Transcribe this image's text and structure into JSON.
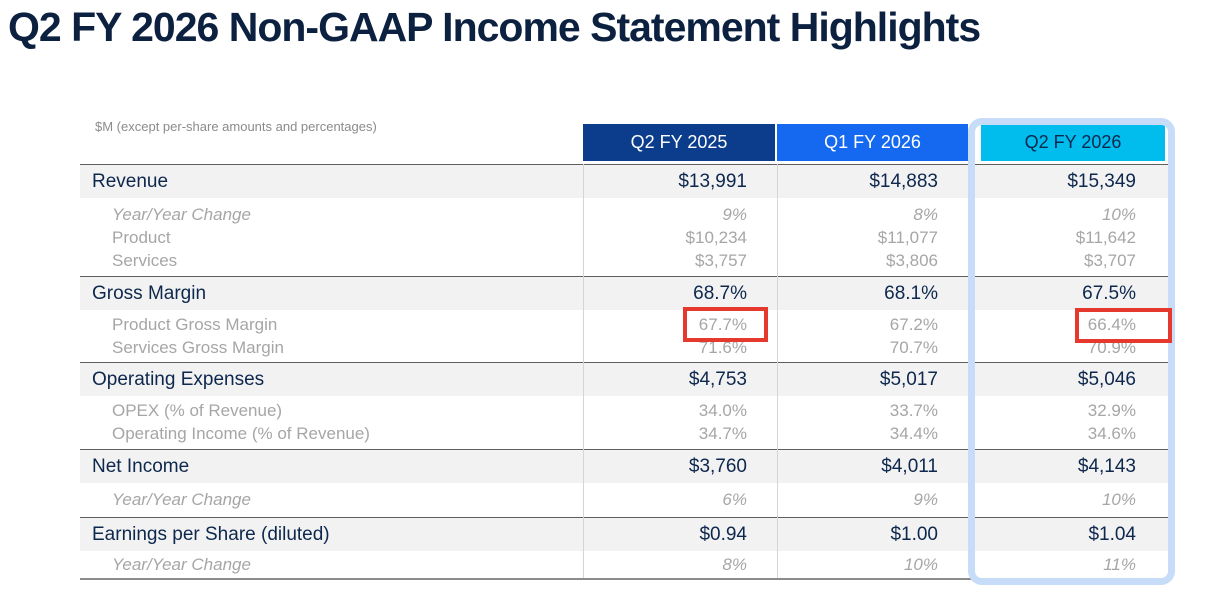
{
  "title": "Q2 FY 2026 Non-GAAP Income Statement Highlights",
  "note": "$M (except per-share amounts and percentages)",
  "columns": [
    {
      "label": "Q2 FY 2025"
    },
    {
      "label": "Q1 FY 2026"
    },
    {
      "label": "Q2 FY 2026"
    }
  ],
  "highlighted_column": "Q2 FY 2026",
  "colors": {
    "title_text": "#0c2140",
    "col1_header_bg": "#0b3d8c",
    "col2_header_bg": "#1568f0",
    "col3_header_bg": "#00bdee",
    "header_text": "#ffffff",
    "col3_header_text": "#0d274d",
    "main_text": "#0d274d",
    "sub_text": "#a6a6a6",
    "band_bg": "#f2f2f2",
    "highlight_border": "#c7dcf8",
    "red_callout": "#e6392e"
  },
  "table": {
    "sections": [
      {
        "main": {
          "label": "Revenue",
          "values": [
            "$13,991",
            "$14,883",
            "$15,349"
          ]
        },
        "subs": [
          {
            "label": "Year/Year Change",
            "values": [
              "9%",
              "8%",
              "10%"
            ]
          },
          {
            "label": "Product",
            "values": [
              "$10,234",
              "$11,077",
              "$11,642"
            ]
          },
          {
            "label": "Services",
            "values": [
              "$3,757",
              "$3,806",
              "$3,707"
            ]
          }
        ]
      },
      {
        "main": {
          "label": "Gross Margin",
          "values": [
            "68.7%",
            "68.1%",
            "67.5%"
          ]
        },
        "subs": [
          {
            "label": "Product Gross Margin",
            "values": [
              "67.7%",
              "67.2%",
              "66.4%"
            ]
          },
          {
            "label": "Services Gross Margin",
            "values": [
              "71.6%",
              "70.7%",
              "70.9%"
            ]
          }
        ]
      },
      {
        "main": {
          "label": "Operating Expenses",
          "values": [
            "$4,753",
            "$5,017",
            "$5,046"
          ]
        },
        "subs": [
          {
            "label": "OPEX (% of Revenue)",
            "values": [
              "34.0%",
              "33.7%",
              "32.9%"
            ]
          },
          {
            "label": "Operating Income (% of Revenue)",
            "values": [
              "34.7%",
              "34.4%",
              "34.6%"
            ]
          }
        ]
      },
      {
        "main": {
          "label": "Net Income",
          "values": [
            "$3,760",
            "$4,011",
            "$4,143"
          ]
        },
        "subs": [
          {
            "label": "Year/Year Change",
            "values": [
              "6%",
              "9%",
              "10%"
            ]
          }
        ]
      },
      {
        "main": {
          "label": "Earnings per Share (diluted)",
          "values": [
            "$0.94",
            "$1.00",
            "$1.04"
          ]
        },
        "subs": [
          {
            "label": "Year/Year Change",
            "values": [
              "8%",
              "10%",
              "11%"
            ]
          }
        ]
      }
    ]
  },
  "annotations": {
    "red_boxes": [
      "67.7%",
      "66.4%"
    ]
  }
}
